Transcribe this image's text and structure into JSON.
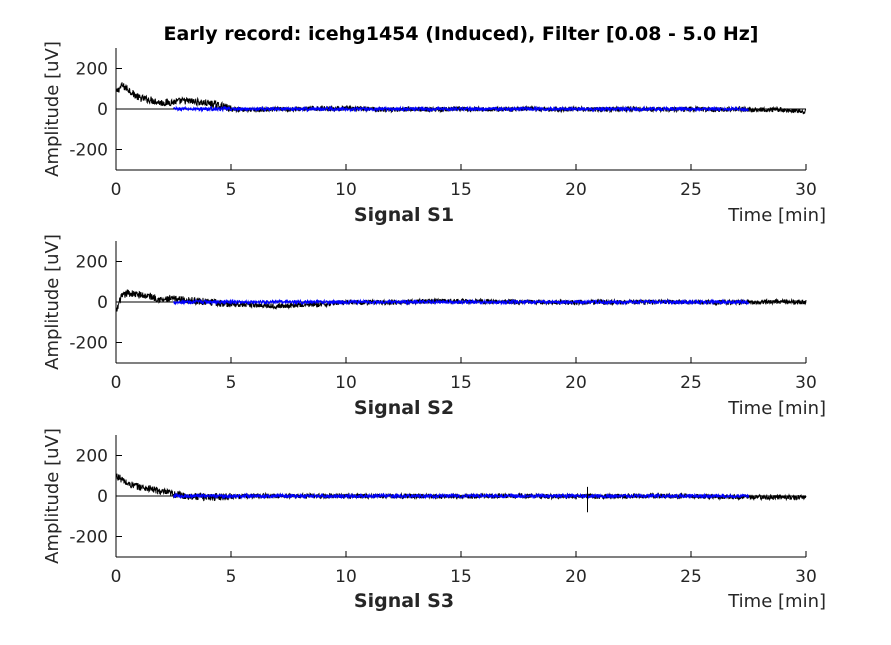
{
  "figure": {
    "title": "Early record: icehg1454 (Induced), Filter [0.08 - 5.0 Hz]"
  },
  "chart_data": [
    {
      "type": "line",
      "panel_title": "Signal S1",
      "xlabel": "Time [min]",
      "ylabel": "Amplitude [uV]",
      "xlim": [
        0,
        30
      ],
      "ylim": [
        -300,
        300
      ],
      "xticks": [
        0,
        5,
        10,
        15,
        20,
        25,
        30
      ],
      "yticks": [
        200,
        0,
        -200
      ],
      "series": [
        {
          "color": "#000000",
          "x": [
            0,
            0.25,
            0.5,
            0.75,
            1,
            1.5,
            2,
            2.5,
            3,
            3.5,
            4,
            4.5,
            5,
            6,
            7,
            8,
            9,
            10,
            11,
            12,
            13,
            14,
            15,
            16,
            17,
            18,
            19,
            20,
            21,
            22,
            23,
            24,
            25,
            26,
            27,
            28,
            29,
            29.5,
            30
          ],
          "y": [
            80,
            115,
            100,
            75,
            55,
            45,
            30,
            35,
            40,
            35,
            28,
            18,
            0,
            -5,
            -2,
            0,
            3,
            2,
            0,
            -3,
            0,
            -3,
            0,
            -2,
            0,
            0,
            -3,
            0,
            -2,
            0,
            0,
            -2,
            0,
            -3,
            0,
            -2,
            -5,
            -8,
            -15
          ]
        },
        {
          "color": "#0000ff",
          "x": [
            2.5,
            30
          ],
          "y": [
            0,
            0
          ],
          "range": [
            2.5,
            27.5
          ]
        }
      ]
    },
    {
      "type": "line",
      "panel_title": "Signal S2",
      "xlabel": "Time [min]",
      "ylabel": "Amplitude [uV]",
      "xlim": [
        0,
        30
      ],
      "ylim": [
        -300,
        300
      ],
      "xticks": [
        0,
        5,
        10,
        15,
        20,
        25,
        30
      ],
      "yticks": [
        200,
        0,
        -200
      ],
      "series": [
        {
          "color": "#000000",
          "x": [
            0,
            0.2,
            0.5,
            1,
            1.5,
            2,
            2.5,
            3,
            4,
            5,
            6,
            7,
            8,
            9,
            10,
            12,
            14,
            16,
            18,
            20,
            22,
            24,
            26,
            28,
            30
          ],
          "y": [
            -55,
            20,
            45,
            35,
            28,
            10,
            15,
            10,
            0,
            -10,
            -15,
            -20,
            -15,
            -12,
            0,
            -2,
            5,
            3,
            0,
            -3,
            0,
            0,
            -2,
            0,
            0
          ]
        },
        {
          "color": "#0000ff",
          "x": [
            2.5,
            30
          ],
          "y": [
            0,
            0
          ],
          "range": [
            2.5,
            27.5
          ]
        }
      ]
    },
    {
      "type": "line",
      "panel_title": "Signal S3",
      "xlabel": "Time [min]",
      "ylabel": "Amplitude [uV]",
      "xlim": [
        0,
        30
      ],
      "ylim": [
        -300,
        300
      ],
      "xticks": [
        0,
        5,
        10,
        15,
        20,
        25,
        30
      ],
      "yticks": [
        200,
        0,
        -200
      ],
      "series": [
        {
          "color": "#000000",
          "x": [
            0,
            0.2,
            0.5,
            1,
            1.5,
            2,
            2.5,
            3,
            4,
            5,
            6,
            8,
            10,
            12,
            14,
            16,
            18,
            20,
            20.5,
            21,
            22,
            24,
            26,
            28,
            30
          ],
          "y": [
            100,
            85,
            60,
            45,
            35,
            20,
            10,
            0,
            -5,
            -2,
            0,
            0,
            0,
            0,
            -2,
            0,
            0,
            -3,
            0,
            -3,
            0,
            0,
            -3,
            -5,
            -8
          ]
        },
        {
          "color": "#0000ff",
          "x": [
            2.5,
            30
          ],
          "y": [
            0,
            0
          ],
          "range": [
            2.5,
            27.5
          ]
        }
      ]
    }
  ]
}
